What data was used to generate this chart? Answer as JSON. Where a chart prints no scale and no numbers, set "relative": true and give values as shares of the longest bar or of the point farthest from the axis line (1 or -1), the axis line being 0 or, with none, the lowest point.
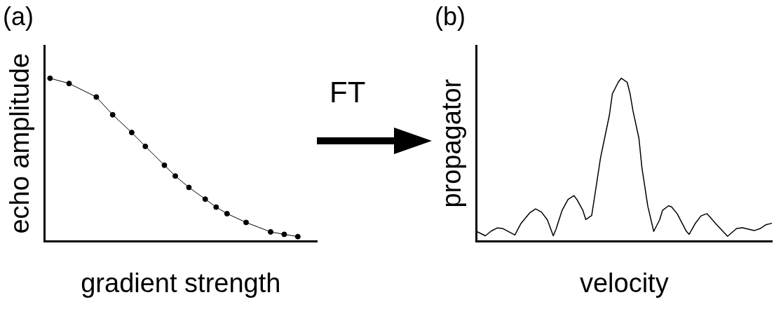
{
  "chart_data": [
    {
      "type": "line",
      "title": "(a)",
      "xlabel": "gradient strength",
      "ylabel": "echo amplitude",
      "relative": true,
      "grid": false,
      "legend": false,
      "marker": "circle",
      "line_style": "solid",
      "annotations": [
        "FT"
      ],
      "categories": [
        null,
        null,
        null,
        null,
        null,
        null,
        null,
        null,
        null,
        null,
        null,
        null,
        null,
        null,
        null,
        null,
        null,
        null,
        null,
        null,
        null,
        null,
        null,
        null,
        null,
        null,
        null,
        null,
        null,
        null,
        null,
        null,
        null,
        null,
        null,
        null,
        null,
        null,
        null,
        null,
        null,
        null,
        null,
        null,
        null,
        null,
        null,
        null,
        null,
        null,
        null,
        null,
        null,
        null,
        null,
        null,
        null,
        null,
        null,
        null,
        null,
        null,
        null,
        null,
        null,
        null,
        null,
        null,
        null,
        null,
        null,
        null,
        null,
        null,
        null,
        null,
        null,
        null,
        null,
        null,
        null,
        null,
        null,
        null,
        null,
        null,
        null,
        null,
        null,
        null,
        null,
        null,
        null,
        null,
        null,
        null,
        null,
        null,
        null,
        null,
        null
      ],
      "series": [
        {
          "color": "#000000",
          "values": [
            null,
            null,
            1,
            null,
            null,
            null,
            null,
            null,
            null,
            0.968,
            null,
            null,
            null,
            null,
            null,
            null,
            null,
            null,
            null,
            0.885,
            null,
            null,
            null,
            null,
            null,
            0.776,
            null,
            null,
            null,
            null,
            null,
            null,
            0.667,
            null,
            null,
            null,
            null,
            0.582,
            null,
            null,
            null,
            null,
            null,
            null,
            0.466,
            null,
            null,
            null,
            0.4,
            null,
            null,
            null,
            null,
            0.33,
            null,
            null,
            null,
            null,
            null,
            0.258,
            null,
            null,
            null,
            0.209,
            null,
            null,
            null,
            0.169,
            null,
            null,
            null,
            null,
            null,
            null,
            0.115,
            null,
            null,
            null,
            null,
            null,
            null,
            null,
            null,
            0.057,
            null,
            null,
            null,
            null,
            0.042,
            null,
            null,
            null,
            null,
            0.028,
            null,
            null,
            null,
            null,
            null,
            null,
            null
          ]
        }
      ]
    },
    {
      "type": "line",
      "title": "(b)",
      "xlabel": "velocity",
      "ylabel": "propagator",
      "relative": true,
      "grid": false,
      "legend": false,
      "line_style": "solid",
      "categories": [
        null,
        null,
        null,
        null,
        null,
        null,
        null,
        null,
        null,
        null,
        null,
        null,
        null,
        null,
        null,
        null,
        null,
        null,
        null,
        null,
        null,
        null,
        null,
        null,
        null,
        null,
        null,
        null,
        null,
        null,
        null,
        null,
        null,
        null,
        null,
        null,
        null,
        null,
        null,
        null,
        null,
        null,
        null,
        null,
        null,
        null,
        null,
        null,
        null,
        null,
        null,
        null,
        null,
        null,
        null,
        null,
        null,
        null,
        null,
        null,
        null,
        null,
        null,
        null,
        null,
        null,
        null,
        null,
        null,
        null,
        null,
        null,
        null,
        null,
        null,
        null,
        null,
        null,
        null,
        null,
        null,
        null,
        null,
        null,
        null,
        null,
        null,
        null,
        null,
        null,
        null,
        null,
        null,
        null,
        null,
        null,
        null,
        null,
        null,
        null,
        null
      ],
      "series": [
        {
          "color": "#000000",
          "values": [
            0.06,
            null,
            null,
            0.033,
            null,
            0.062,
            null,
            0.081,
            null,
            0.077,
            null,
            null,
            null,
            0.038,
            null,
            0.107,
            null,
            null,
            0.173,
            null,
            0.198,
            null,
            0.179,
            null,
            0.131,
            null,
            0.033,
            0.077,
            null,
            0.19,
            null,
            0.256,
            null,
            0.28,
            0.256,
            null,
            0.19,
            0.133,
            null,
            0.157,
            0.274,
            null,
            0.512,
            null,
            null,
            0.774,
            0.905,
            null,
            0.976,
            1,
            null,
            0.976,
            0.905,
            0.798,
            null,
            0.631,
            0.452,
            null,
            0.214,
            null,
            0.06,
            null,
            0.131,
            0.19,
            null,
            0.217,
            0.212,
            null,
            0.167,
            null,
            null,
            0.062,
            0.042,
            null,
            0.107,
            null,
            0.155,
            null,
            0.169,
            0.149,
            null,
            0.107,
            null,
            null,
            null,
            0.03,
            null,
            null,
            0.077,
            null,
            0.083,
            null,
            0.074,
            null,
            0.065,
            null,
            0.077,
            null,
            0.101,
            null,
            0.11
          ]
        }
      ]
    }
  ]
}
